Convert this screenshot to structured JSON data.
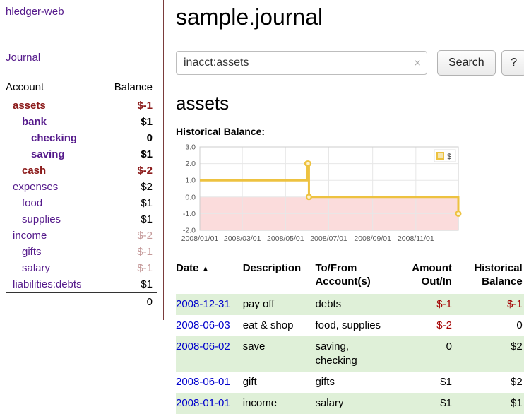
{
  "app": {
    "brand": "hledger-web",
    "journal_link": "Journal"
  },
  "sidebar": {
    "header": {
      "account": "Account",
      "balance": "Balance"
    },
    "accounts": [
      {
        "name": "assets",
        "depth": 0,
        "balance": "$-1",
        "name_class": "bold red",
        "balance_class": "bold neg"
      },
      {
        "name": "bank",
        "depth": 1,
        "balance": "$1",
        "name_class": "bold",
        "balance_class": "bold"
      },
      {
        "name": "checking",
        "depth": 2,
        "balance": "0",
        "name_class": "bold",
        "balance_class": "bold"
      },
      {
        "name": "saving",
        "depth": 2,
        "balance": "$1",
        "name_class": "bold",
        "balance_class": "bold"
      },
      {
        "name": "cash",
        "depth": 1,
        "balance": "$-2",
        "name_class": "bold red",
        "balance_class": "bold neg"
      },
      {
        "name": "expenses",
        "depth": 0,
        "balance": "$2",
        "name_class": "",
        "balance_class": ""
      },
      {
        "name": "food",
        "depth": 1,
        "balance": "$1",
        "name_class": "",
        "balance_class": ""
      },
      {
        "name": "supplies",
        "depth": 1,
        "balance": "$1",
        "name_class": "",
        "balance_class": ""
      },
      {
        "name": "income",
        "depth": 0,
        "balance": "$-2",
        "name_class": "",
        "balance_class": "faded"
      },
      {
        "name": "gifts",
        "depth": 1,
        "balance": "$-1",
        "name_class": "",
        "balance_class": "faded"
      },
      {
        "name": "salary",
        "depth": 1,
        "balance": "$-1",
        "name_class": "",
        "balance_class": "faded"
      },
      {
        "name": "liabilities:debts",
        "depth": 0,
        "balance": "$1",
        "name_class": "",
        "balance_class": ""
      }
    ],
    "total": "0"
  },
  "main": {
    "title": "sample.journal",
    "search": {
      "value": "inacct:assets",
      "clear_icon": "×",
      "button": "Search",
      "help": "?"
    },
    "section_title": "assets",
    "chart_title": "Historical Balance:"
  },
  "chart_data": {
    "type": "line",
    "step": true,
    "title": "Historical Balance:",
    "series": [
      {
        "name": "$",
        "color": "#edc240",
        "points": [
          [
            "2008-01-01",
            1
          ],
          [
            "2008-06-01",
            2
          ],
          [
            "2008-06-02",
            2
          ],
          [
            "2008-06-03",
            0
          ],
          [
            "2008-12-31",
            -1
          ]
        ]
      }
    ],
    "xlim": [
      "2008-01-01",
      "2008-12-31"
    ],
    "ylim": [
      -2,
      3
    ],
    "y_ticks": [
      3,
      2,
      1,
      0,
      -1,
      -2
    ],
    "x_tick_labels": [
      "2008/01/01",
      "2008/03/01",
      "2008/05/01",
      "2008/07/01",
      "2008/09/01",
      "2008/11/01"
    ],
    "below_zero_fill": "#fbdcdc",
    "grid": true,
    "legend_position": "top-right"
  },
  "register": {
    "headers": {
      "date": "Date",
      "sort_icon": "▲",
      "description": "Description",
      "tofrom_1": "To/From",
      "tofrom_2": "Account(s)",
      "amount_1": "Amount",
      "amount_2": "Out/In",
      "balance_1": "Historical",
      "balance_2": "Balance"
    },
    "rows": [
      {
        "date": "2008-12-31",
        "description": "pay off",
        "accounts": "debts",
        "amount": "$-1",
        "amount_negative": true,
        "balance": "$-1",
        "balance_negative": true
      },
      {
        "date": "2008-06-03",
        "description": "eat & shop",
        "accounts": "food, supplies",
        "amount": "$-2",
        "amount_negative": true,
        "balance": "0",
        "balance_negative": false
      },
      {
        "date": "2008-06-02",
        "description": "save",
        "accounts": "saving, checking",
        "amount": "0",
        "amount_negative": false,
        "balance": "$2",
        "balance_negative": false
      },
      {
        "date": "2008-06-01",
        "description": "gift",
        "accounts": "gifts",
        "amount": "$1",
        "amount_negative": false,
        "balance": "$2",
        "balance_negative": false
      },
      {
        "date": "2008-01-01",
        "description": "income",
        "accounts": "salary",
        "amount": "$1",
        "amount_negative": false,
        "balance": "$1",
        "balance_negative": false
      }
    ]
  },
  "colors": {
    "link_purple": "#551a8b",
    "link_blue": "#0000cc",
    "sidebar_negative": "#8b1a1a",
    "register_negative": "#a40000",
    "faded_negative": "#c49898",
    "row_green": "#dff0d8",
    "chart_line": "#edc240",
    "chart_below_zero": "#fbdcdc"
  }
}
